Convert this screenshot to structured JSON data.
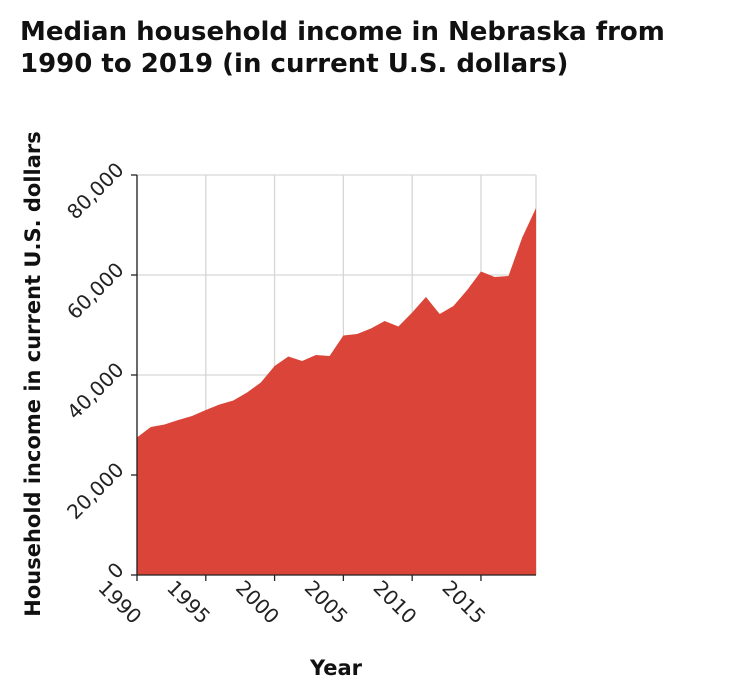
{
  "chart_data": {
    "type": "area",
    "title": "Median household income in Nebraska from 1990 to 2019 (in current U.S. dollars)",
    "xlabel": "Year",
    "ylabel": "Household income in current U.S. dollars",
    "xlim": [
      1990,
      2019
    ],
    "ylim": [
      0,
      80000
    ],
    "x_ticks": [
      1990,
      1995,
      2000,
      2005,
      2010,
      2015
    ],
    "x_tick_labels": [
      "1990",
      "1995",
      "2000",
      "2005",
      "2010",
      "2015"
    ],
    "y_ticks": [
      0,
      20000,
      40000,
      60000,
      80000
    ],
    "y_tick_labels": [
      "0",
      "20,000",
      "40,000",
      "60,000",
      "80,000"
    ],
    "grid": true,
    "colors": {
      "area": "#db4438",
      "grid": "#d6d6d6",
      "axis": "#222222"
    },
    "series": [
      {
        "x": [
          1990,
          1991,
          1992,
          1993,
          1994,
          1995,
          1996,
          1997,
          1998,
          1999,
          2000,
          2001,
          2002,
          2003,
          2004,
          2005,
          2006,
          2007,
          2008,
          2009,
          2010,
          2011,
          2012,
          2013,
          2014,
          2015,
          2016,
          2017,
          2018,
          2019
        ],
        "values": [
          27500,
          29600,
          30100,
          31000,
          31800,
          33000,
          34100,
          34900,
          36500,
          38500,
          41800,
          43700,
          42800,
          44000,
          43800,
          47900,
          48200,
          49300,
          50800,
          49700,
          52500,
          55600,
          52200,
          53800,
          57000,
          60700,
          59600,
          59800,
          67500,
          73400
        ]
      }
    ]
  }
}
